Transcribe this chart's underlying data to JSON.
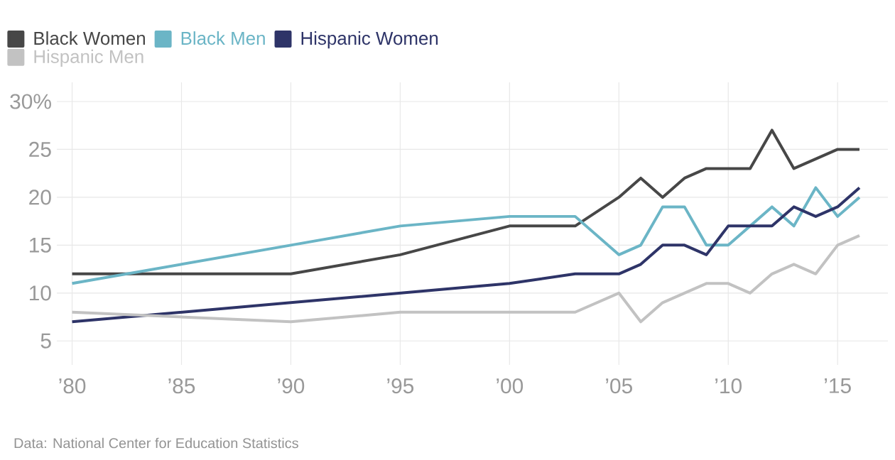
{
  "chart_data": {
    "type": "line",
    "annotations": [
      "Data: National Center for Education Statistics"
    ],
    "x": [
      1980,
      1990,
      1995,
      2000,
      2003,
      2005,
      2006,
      2007,
      2008,
      2009,
      2010,
      2011,
      2012,
      2013,
      2014,
      2015,
      2016
    ],
    "series": [
      {
        "name": "Black Women",
        "color": "#474747",
        "values": [
          12,
          12,
          14,
          17,
          17,
          20,
          22,
          20,
          22,
          23,
          23,
          23,
          27,
          23,
          24,
          25,
          25
        ]
      },
      {
        "name": "Black Men",
        "color": "#6bb5c6",
        "values": [
          11,
          15,
          17,
          18,
          18,
          14,
          15,
          19,
          19,
          15,
          15,
          17,
          19,
          17,
          21,
          18,
          20
        ]
      },
      {
        "name": "Hispanic Women",
        "color": "#2e3468",
        "values": [
          7,
          9,
          10,
          11,
          12,
          12,
          13,
          15,
          15,
          14,
          17,
          17,
          17,
          19,
          18,
          19,
          21
        ]
      },
      {
        "name": "Hispanic Men",
        "color": "#c2c2c2",
        "values": [
          8,
          7,
          8,
          8,
          8,
          10,
          7,
          9,
          10,
          11,
          11,
          10,
          12,
          13,
          12,
          15,
          16
        ]
      }
    ],
    "xlim": [
      1979.3,
      2017.3
    ],
    "ylim": [
      2.5,
      32
    ],
    "xticks": [
      {
        "value": 1980,
        "label": "’80"
      },
      {
        "value": 1985,
        "label": "’85"
      },
      {
        "value": 1990,
        "label": "’90"
      },
      {
        "value": 1995,
        "label": "’95"
      },
      {
        "value": 2000,
        "label": "’00"
      },
      {
        "value": 2005,
        "label": "’05"
      },
      {
        "value": 2010,
        "label": "’10"
      },
      {
        "value": 2015,
        "label": "’15"
      }
    ],
    "yticks": [
      5,
      10,
      15,
      20,
      25,
      {
        "value": 30,
        "label": "30%"
      }
    ],
    "grid": true,
    "legend": "top left",
    "line_style": "solid",
    "marker": "none"
  }
}
